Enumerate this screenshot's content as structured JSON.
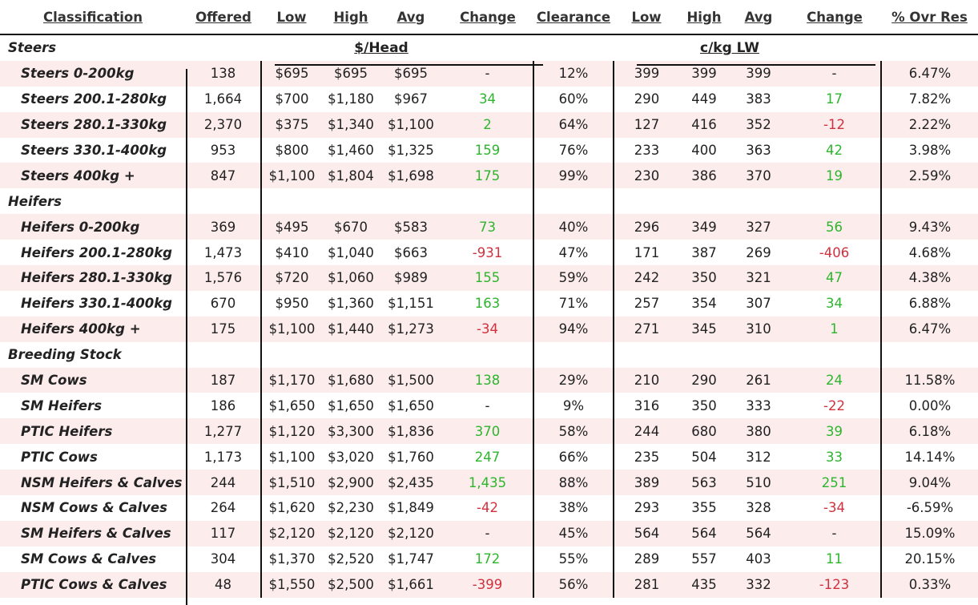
{
  "columns": [
    "Classification",
    "Offered",
    "Low",
    "High",
    "Avg",
    "Change",
    "Clearance",
    "Low",
    "High",
    "Avg",
    "Change",
    "% Ovr Res"
  ],
  "units": {
    "head": "$/Head",
    "kg": "c/kg LW"
  },
  "colors": {
    "up": "#2db52d",
    "down": "#d0313d",
    "band": "#fcecec"
  },
  "rows": [
    {
      "type": "group",
      "label": "Steers"
    },
    {
      "type": "item",
      "label": "Steers 0-200kg",
      "offered": "138",
      "low": "$695",
      "high": "$695",
      "avg": "$695",
      "change": "-",
      "dir": "",
      "clearance": "12%",
      "low2": "399",
      "high2": "399",
      "avg2": "399",
      "change2": "-",
      "dir2": "",
      "res": "6.47%"
    },
    {
      "type": "item",
      "label": "Steers 200.1-280kg",
      "offered": "1,664",
      "low": "$700",
      "high": "$1,180",
      "avg": "$967",
      "change": "34",
      "dir": "up",
      "clearance": "60%",
      "low2": "290",
      "high2": "449",
      "avg2": "383",
      "change2": "17",
      "dir2": "up",
      "res": "7.82%"
    },
    {
      "type": "item",
      "label": "Steers 280.1-330kg",
      "offered": "2,370",
      "low": "$375",
      "high": "$1,340",
      "avg": "$1,100",
      "change": "2",
      "dir": "up",
      "clearance": "64%",
      "low2": "127",
      "high2": "416",
      "avg2": "352",
      "change2": "-12",
      "dir2": "down",
      "res": "2.22%"
    },
    {
      "type": "item",
      "label": "Steers 330.1-400kg",
      "offered": "953",
      "low": "$800",
      "high": "$1,460",
      "avg": "$1,325",
      "change": "159",
      "dir": "up",
      "clearance": "76%",
      "low2": "233",
      "high2": "400",
      "avg2": "363",
      "change2": "42",
      "dir2": "up",
      "res": "3.98%"
    },
    {
      "type": "item",
      "label": "Steers 400kg +",
      "offered": "847",
      "low": "$1,100",
      "high": "$1,804",
      "avg": "$1,698",
      "change": "175",
      "dir": "up",
      "clearance": "99%",
      "low2": "230",
      "high2": "386",
      "avg2": "370",
      "change2": "19",
      "dir2": "up",
      "res": "2.59%"
    },
    {
      "type": "group",
      "label": "Heifers"
    },
    {
      "type": "item",
      "label": "Heifers 0-200kg",
      "offered": "369",
      "low": "$495",
      "high": "$670",
      "avg": "$583",
      "change": "73",
      "dir": "up",
      "clearance": "40%",
      "low2": "296",
      "high2": "349",
      "avg2": "327",
      "change2": "56",
      "dir2": "up",
      "res": "9.43%"
    },
    {
      "type": "item",
      "label": "Heifers 200.1-280kg",
      "offered": "1,473",
      "low": "$410",
      "high": "$1,040",
      "avg": "$663",
      "change": "-931",
      "dir": "down",
      "clearance": "47%",
      "low2": "171",
      "high2": "387",
      "avg2": "269",
      "change2": "-406",
      "dir2": "down",
      "res": "4.68%"
    },
    {
      "type": "item",
      "label": "Heifers 280.1-330kg",
      "offered": "1,576",
      "low": "$720",
      "high": "$1,060",
      "avg": "$989",
      "change": "155",
      "dir": "up",
      "clearance": "59%",
      "low2": "242",
      "high2": "350",
      "avg2": "321",
      "change2": "47",
      "dir2": "up",
      "res": "4.38%"
    },
    {
      "type": "item",
      "label": "Heifers 330.1-400kg",
      "offered": "670",
      "low": "$950",
      "high": "$1,360",
      "avg": "$1,151",
      "change": "163",
      "dir": "up",
      "clearance": "71%",
      "low2": "257",
      "high2": "354",
      "avg2": "307",
      "change2": "34",
      "dir2": "up",
      "res": "6.88%"
    },
    {
      "type": "item",
      "label": "Heifers 400kg +",
      "offered": "175",
      "low": "$1,100",
      "high": "$1,440",
      "avg": "$1,273",
      "change": "-34",
      "dir": "down",
      "clearance": "94%",
      "low2": "271",
      "high2": "345",
      "avg2": "310",
      "change2": "1",
      "dir2": "up",
      "res": "6.47%"
    },
    {
      "type": "group",
      "label": "Breeding Stock"
    },
    {
      "type": "item",
      "label": "SM Cows",
      "offered": "187",
      "low": "$1,170",
      "high": "$1,680",
      "avg": "$1,500",
      "change": "138",
      "dir": "up",
      "clearance": "29%",
      "low2": "210",
      "high2": "290",
      "avg2": "261",
      "change2": "24",
      "dir2": "up",
      "res": "11.58%"
    },
    {
      "type": "item",
      "label": "SM Heifers",
      "offered": "186",
      "low": "$1,650",
      "high": "$1,650",
      "avg": "$1,650",
      "change": "-",
      "dir": "",
      "clearance": "9%",
      "low2": "316",
      "high2": "350",
      "avg2": "333",
      "change2": "-22",
      "dir2": "down",
      "res": "0.00%"
    },
    {
      "type": "item",
      "label": "PTIC Heifers",
      "offered": "1,277",
      "low": "$1,120",
      "high": "$3,300",
      "avg": "$1,836",
      "change": "370",
      "dir": "up",
      "clearance": "58%",
      "low2": "244",
      "high2": "680",
      "avg2": "380",
      "change2": "39",
      "dir2": "up",
      "res": "6.18%"
    },
    {
      "type": "item",
      "label": "PTIC Cows",
      "offered": "1,173",
      "low": "$1,100",
      "high": "$3,020",
      "avg": "$1,760",
      "change": "247",
      "dir": "up",
      "clearance": "66%",
      "low2": "235",
      "high2": "504",
      "avg2": "312",
      "change2": "33",
      "dir2": "up",
      "res": "14.14%"
    },
    {
      "type": "item",
      "label": "NSM Heifers & Calves",
      "offered": "244",
      "low": "$1,510",
      "high": "$2,900",
      "avg": "$2,435",
      "change": "1,435",
      "dir": "up",
      "clearance": "88%",
      "low2": "389",
      "high2": "563",
      "avg2": "510",
      "change2": "251",
      "dir2": "up",
      "res": "9.04%"
    },
    {
      "type": "item",
      "label": "NSM Cows & Calves",
      "offered": "264",
      "low": "$1,620",
      "high": "$2,230",
      "avg": "$1,849",
      "change": "-42",
      "dir": "down",
      "clearance": "38%",
      "low2": "293",
      "high2": "355",
      "avg2": "328",
      "change2": "-34",
      "dir2": "down",
      "res": "-6.59%"
    },
    {
      "type": "item",
      "label": "SM Heifers & Calves",
      "offered": "117",
      "low": "$2,120",
      "high": "$2,120",
      "avg": "$2,120",
      "change": "-",
      "dir": "",
      "clearance": "45%",
      "low2": "564",
      "high2": "564",
      "avg2": "564",
      "change2": "-",
      "dir2": "",
      "res": "15.09%"
    },
    {
      "type": "item",
      "label": "SM Cows & Calves",
      "offered": "304",
      "low": "$1,370",
      "high": "$2,520",
      "avg": "$1,747",
      "change": "172",
      "dir": "up",
      "clearance": "55%",
      "low2": "289",
      "high2": "557",
      "avg2": "403",
      "change2": "11",
      "dir2": "up",
      "res": "20.15%"
    },
    {
      "type": "item",
      "label": "PTIC Cows & Calves",
      "offered": "48",
      "low": "$1,550",
      "high": "$2,500",
      "avg": "$1,661",
      "change": "-399",
      "dir": "down",
      "clearance": "56%",
      "low2": "281",
      "high2": "435",
      "avg2": "332",
      "change2": "-123",
      "dir2": "down",
      "res": "0.33%"
    }
  ]
}
